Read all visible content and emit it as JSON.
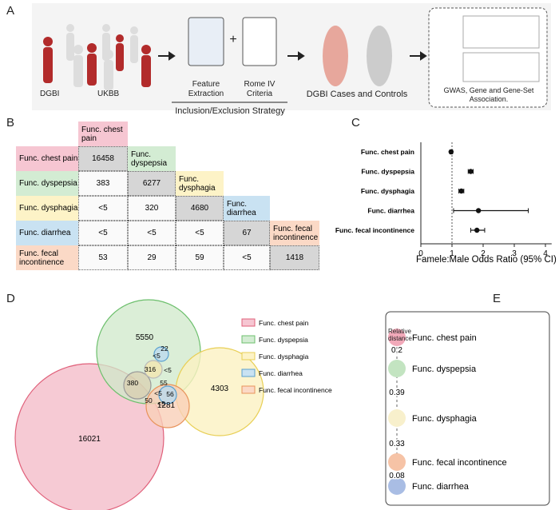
{
  "panels": {
    "A": {
      "label": "A",
      "groups": [
        "DGBI",
        "UKBB"
      ],
      "steps": [
        "Feature Extraction",
        "Rome IV Criteria"
      ],
      "plus": "+",
      "strategy": "Inclusion/Exclusion Strategy",
      "cases": "DGBI Cases and Controls",
      "analysis": "GWAS, Gene and Gene-Set Association."
    },
    "B": {
      "label": "B",
      "traits": [
        "Func. chest pain",
        "Func. dyspepsia",
        "Func. dysphagia",
        "Func. diarrhea",
        "Func. fecal incontinence"
      ],
      "rows": [
        [
          16458
        ],
        [
          383,
          6277
        ],
        [
          "<5",
          320,
          4680
        ],
        [
          "<5",
          "<5",
          "<5",
          67
        ],
        [
          53,
          29,
          59,
          "<5",
          1418
        ]
      ]
    },
    "C": {
      "label": "C",
      "type": "forest",
      "categories": [
        "Func. chest pain",
        "Func. dyspepsia",
        "Func. dysphagia",
        "Func. diarrhea",
        "Func. fecal incontinence"
      ],
      "values": [
        0.97,
        1.6,
        1.3,
        1.85,
        1.8
      ],
      "ci_low": [
        0.93,
        1.52,
        1.22,
        1.05,
        1.6
      ],
      "ci_high": [
        1.02,
        1.68,
        1.38,
        3.45,
        2.05
      ],
      "xlim": [
        0,
        4.2
      ],
      "xticks": [
        0,
        1,
        2,
        3,
        4
      ],
      "reference": 1,
      "xlabel": "Famele:Male Odds Ratio (95% CI)"
    },
    "D": {
      "label": "D",
      "counts": [
        5550,
        4303,
        16021,
        1281,
        380,
        316,
        22,
        "<5",
        "<5",
        55,
        56,
        50,
        "<5",
        "<5"
      ],
      "legend": [
        "Func. chest pain",
        "Func. dyspepsia",
        "Func. dysphagia",
        "Func. diarrhea",
        "Func. fecal incontinence"
      ]
    },
    "E": {
      "label": "E",
      "axis_label": "Relative distance",
      "nodes": [
        "Func. chest pain",
        "Func. dyspepsia",
        "Func. dysphagia",
        "Func. fecal incontinence",
        "Func. diarrhea"
      ],
      "distances": [
        0.2,
        0.39,
        0.33,
        0.08
      ]
    }
  }
}
